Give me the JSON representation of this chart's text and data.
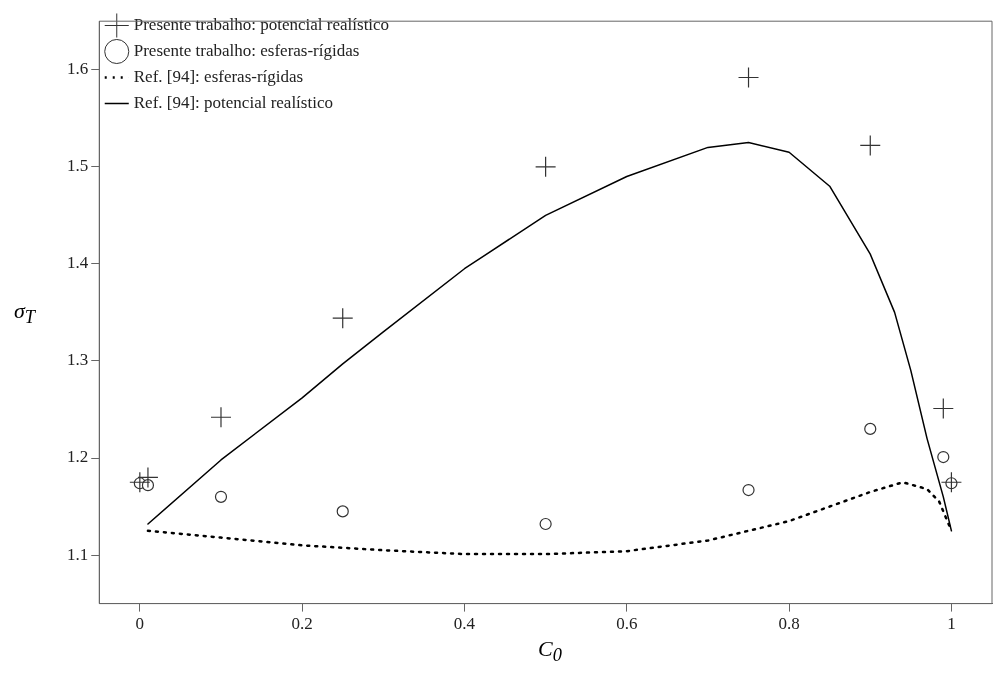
{
  "chart_data": {
    "type": "scatter",
    "xlabel": "C$_{0}$",
    "ylabel": "σ$_{T}$",
    "xlim": [
      -0.05,
      1.05
    ],
    "ylim": [
      1.05,
      1.65
    ],
    "xticks": [
      {
        "value": 0,
        "label": "0"
      },
      0.2,
      0.4,
      0.6,
      0.8,
      {
        "value": 1,
        "label": "1"
      }
    ],
    "yticks": [
      1.1,
      1.2,
      1.3,
      1.4,
      1.5,
      1.6
    ],
    "grid": false,
    "legend": "top left",
    "series": [
      {
        "name": "Presente trabalho: esferas-rígidas",
        "type": "scatter",
        "marker": "circle",
        "color": "#333333",
        "x": [
          0,
          0.01,
          0.1,
          0.25,
          0.5,
          0.75,
          0.9,
          0.99,
          1
        ],
        "values": [
          1.174,
          1.172,
          1.16,
          1.145,
          1.132,
          1.167,
          1.23,
          1.201,
          1.174
        ]
      },
      {
        "name": "Ref. [94]: esferas-rígidas",
        "type": "line",
        "marker": "none",
        "line_style": "dotted",
        "color": "#000000",
        "x": [
          0.01,
          0.1,
          0.2,
          0.3,
          0.4,
          0.5,
          0.6,
          0.7,
          0.8,
          0.85,
          0.9,
          0.94,
          0.97,
          0.985,
          0.995,
          1
        ],
        "values": [
          1.125,
          1.118,
          1.11,
          1.105,
          1.101,
          1.101,
          1.104,
          1.115,
          1.135,
          1.15,
          1.165,
          1.175,
          1.168,
          1.155,
          1.135,
          1.125
        ]
      },
      {
        "name": "Presente trabalho: potencial realístico",
        "type": "scatter",
        "marker": "cross",
        "color": "#333333",
        "x": [
          0,
          0.01,
          0.1,
          0.25,
          0.5,
          0.75,
          0.9,
          0.99,
          1
        ],
        "values": [
          1.175,
          1.18,
          1.242,
          1.344,
          1.5,
          1.592,
          1.522,
          1.251,
          1.175
        ]
      },
      {
        "name": "Ref. [94]: potencial realístico",
        "type": "line",
        "marker": "none",
        "line_style": "solid",
        "color": "#000000",
        "x": [
          0.01,
          0.1,
          0.2,
          0.25,
          0.3,
          0.4,
          0.5,
          0.6,
          0.7,
          0.75,
          0.8,
          0.85,
          0.9,
          0.93,
          0.95,
          0.97,
          0.99,
          1
        ],
        "values": [
          1.132,
          1.198,
          1.262,
          1.297,
          1.33,
          1.395,
          1.45,
          1.49,
          1.52,
          1.525,
          1.515,
          1.48,
          1.41,
          1.35,
          1.29,
          1.22,
          1.16,
          1.125
        ]
      }
    ]
  }
}
